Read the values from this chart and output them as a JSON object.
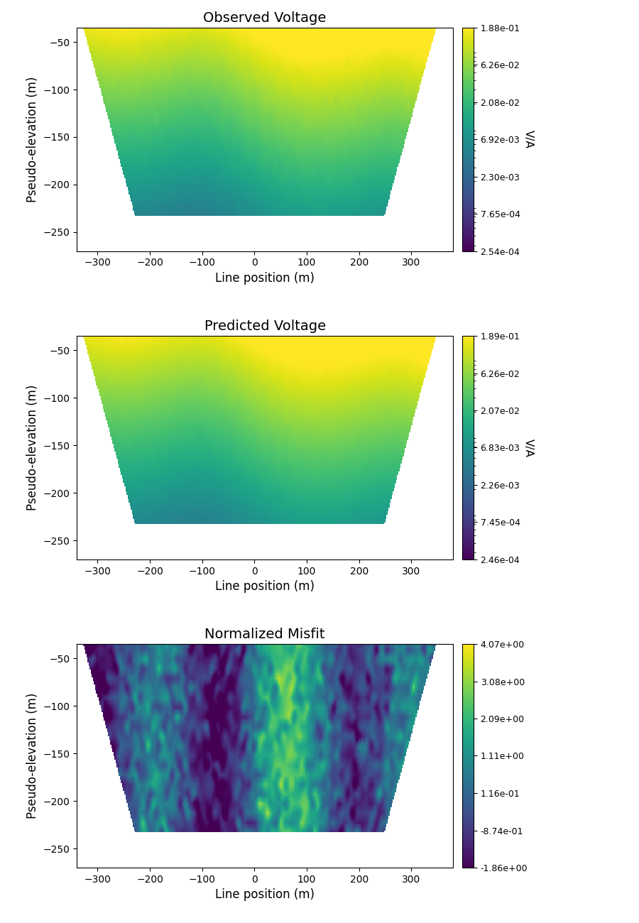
{
  "titles": [
    "Observed Voltage",
    "Predicted Voltage",
    "Normalized Misfit"
  ],
  "xlabel": "Line position (m)",
  "ylabel": "Pseudo-elevation (m)",
  "xlim": [
    -340,
    380
  ],
  "ylim": [
    -270,
    -35
  ],
  "cbar_labels_1": [
    "1.88e-01",
    "6.26e-02",
    "2.08e-02",
    "6.92e-03",
    "2.30e-03",
    "7.65e-04",
    "2.54e-04"
  ],
  "cbar_labels_2": [
    "1.89e-01",
    "6.26e-02",
    "2.07e-02",
    "6.83e-03",
    "2.26e-03",
    "7.45e-04",
    "2.46e-04"
  ],
  "cbar_labels_3": [
    "4.07e+00",
    "3.08e+00",
    "2.09e+00",
    "1.11e+00",
    "1.16e-01",
    "-8.74e-01",
    "-1.86e+00"
  ],
  "cbar_unit_1": "V/A",
  "cbar_unit_2": "V/A",
  "cbar_unit_3": "",
  "vmin_1": 0.000254,
  "vmax_1": 0.188,
  "vmin_2": 0.000246,
  "vmax_2": 0.189,
  "vmin_3": -1.86,
  "vmax_3": 4.07,
  "cmap_1": "viridis",
  "cmap_2": "viridis",
  "cmap_3": "viridis"
}
